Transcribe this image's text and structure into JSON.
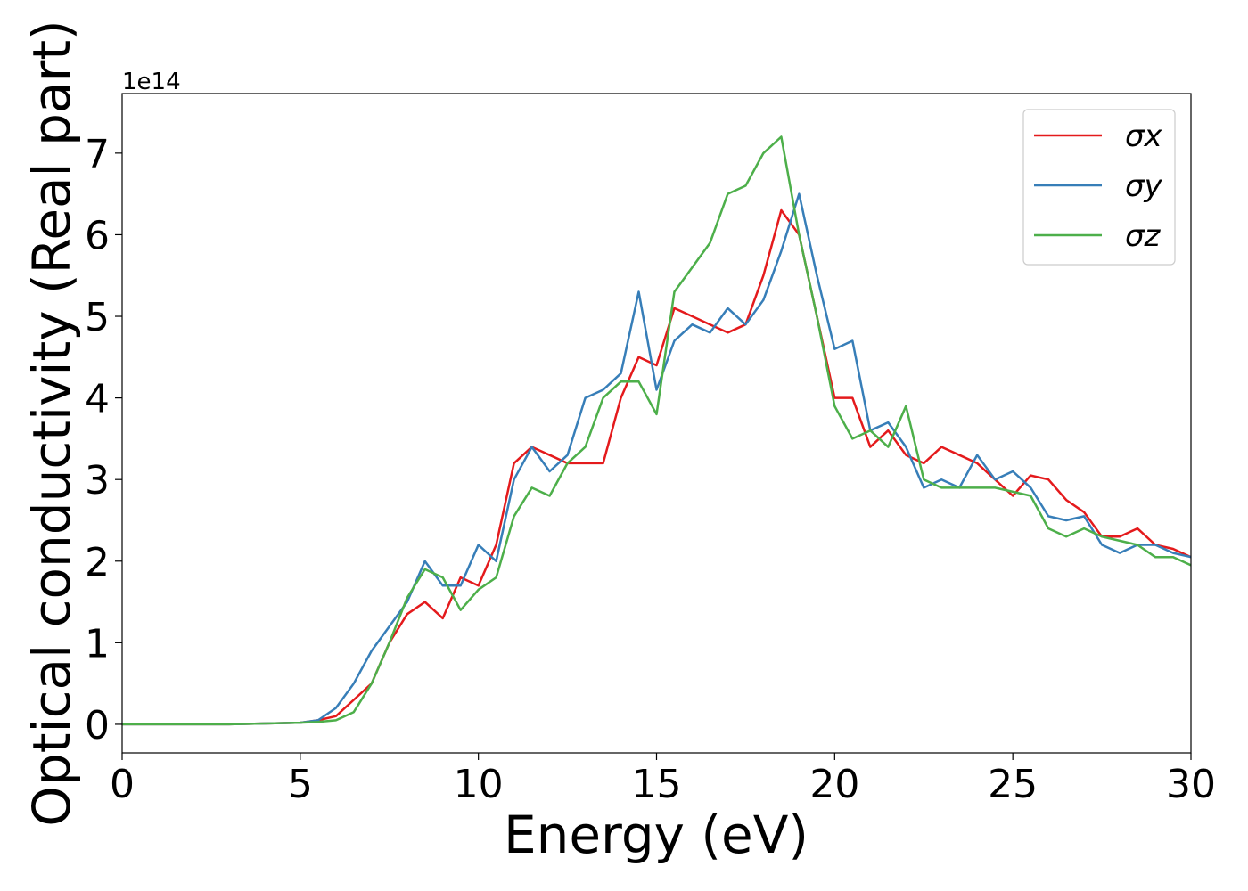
{
  "chart_data": {
    "type": "line",
    "xlabel": "Energy (eV)",
    "ylabel": "Optical conductivity (Real part)",
    "y_offset_label": "1e14",
    "x": [
      0,
      1,
      2,
      3,
      4,
      5,
      5.5,
      6,
      6.5,
      7,
      7.5,
      8,
      8.5,
      9,
      9.5,
      10,
      10.5,
      11,
      11.5,
      12,
      12.5,
      13,
      13.5,
      14,
      14.5,
      15,
      15.5,
      16,
      16.5,
      17,
      17.5,
      18,
      18.5,
      19,
      19.5,
      20,
      20.5,
      21,
      21.5,
      22,
      22.5,
      23,
      23.5,
      24,
      24.5,
      25,
      25.5,
      26,
      26.5,
      27,
      27.5,
      28,
      28.5,
      29,
      29.5,
      30
    ],
    "series": [
      {
        "name": "σx",
        "color": "#e41a1c",
        "values": [
          0,
          0,
          0,
          0,
          0.01,
          0.02,
          0.05,
          0.1,
          0.3,
          0.5,
          1.0,
          1.35,
          1.5,
          1.3,
          1.8,
          1.7,
          2.2,
          3.2,
          3.4,
          3.3,
          3.2,
          3.2,
          3.2,
          4.0,
          4.5,
          4.4,
          5.1,
          5.0,
          4.9,
          4.8,
          4.9,
          5.5,
          6.3,
          6.0,
          5.0,
          4.0,
          4.0,
          3.4,
          3.6,
          3.3,
          3.2,
          3.4,
          3.3,
          3.2,
          3.0,
          2.8,
          3.05,
          3.0,
          2.75,
          2.6,
          2.3,
          2.3,
          2.4,
          2.2,
          2.15,
          2.05
        ]
      },
      {
        "name": "σy",
        "color": "#377eb8",
        "values": [
          0,
          0,
          0,
          0,
          0.01,
          0.02,
          0.05,
          0.2,
          0.5,
          0.9,
          1.2,
          1.5,
          2.0,
          1.7,
          1.7,
          2.2,
          2.0,
          3.0,
          3.4,
          3.1,
          3.3,
          4.0,
          4.1,
          4.3,
          5.3,
          4.1,
          4.7,
          4.9,
          4.8,
          5.1,
          4.9,
          5.2,
          5.8,
          6.5,
          5.5,
          4.6,
          4.7,
          3.6,
          3.7,
          3.4,
          2.9,
          3.0,
          2.9,
          3.3,
          3.0,
          3.1,
          2.9,
          2.55,
          2.5,
          2.55,
          2.2,
          2.1,
          2.2,
          2.2,
          2.1,
          2.05
        ]
      },
      {
        "name": "σz",
        "color": "#4daf4a",
        "values": [
          0,
          0,
          0,
          0,
          0.01,
          0.02,
          0.03,
          0.05,
          0.15,
          0.5,
          1.0,
          1.55,
          1.9,
          1.8,
          1.4,
          1.65,
          1.8,
          2.55,
          2.9,
          2.8,
          3.2,
          3.4,
          4.0,
          4.2,
          4.2,
          3.8,
          5.3,
          5.6,
          5.9,
          6.5,
          6.6,
          7.0,
          7.2,
          6.0,
          5.0,
          3.9,
          3.5,
          3.6,
          3.4,
          3.9,
          3.0,
          2.9,
          2.9,
          2.9,
          2.9,
          2.85,
          2.8,
          2.4,
          2.3,
          2.4,
          2.3,
          2.25,
          2.2,
          2.05,
          2.05,
          1.95
        ]
      }
    ],
    "xlim": [
      0,
      30
    ],
    "xticks": [
      0,
      5,
      10,
      15,
      20,
      25,
      30
    ],
    "ylim": [
      -0.35,
      7.73
    ],
    "yticks": [
      0,
      1,
      2,
      3,
      4,
      5,
      6,
      7
    ],
    "legend": "upper right",
    "grid": false
  }
}
